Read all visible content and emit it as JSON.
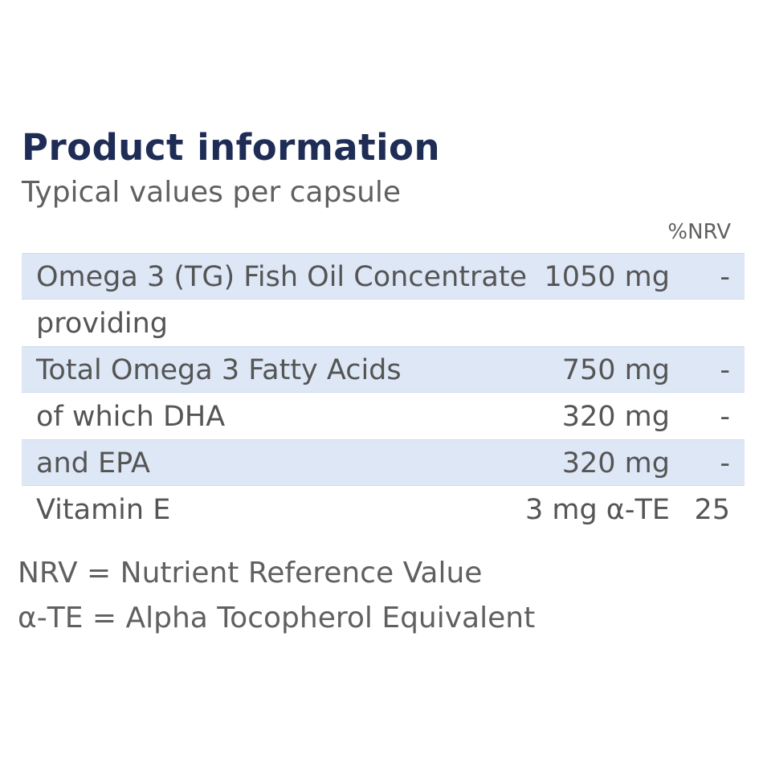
{
  "header": {
    "title": "Product information",
    "subtitle": "Typical values per capsule",
    "nrv_column_label": "%NRV"
  },
  "rows": [
    {
      "name": "Omega 3 (TG) Fish Oil Concentrate",
      "amount": "1050 mg",
      "nrv": "-",
      "shaded": true
    },
    {
      "name": "providing",
      "amount": "",
      "nrv": "",
      "shaded": false
    },
    {
      "name": "Total Omega 3 Fatty Acids",
      "amount": "750 mg",
      "nrv": "-",
      "shaded": true
    },
    {
      "name": "of which DHA",
      "amount": "320 mg",
      "nrv": "-",
      "shaded": false
    },
    {
      "name": "and EPA",
      "amount": "320 mg",
      "nrv": "-",
      "shaded": true
    },
    {
      "name": "Vitamin E",
      "amount": "3 mg α-TE",
      "nrv": "25",
      "shaded": false
    }
  ],
  "footnotes": [
    "NRV = Nutrient Reference Value",
    "α-TE = Alpha Tocopherol Equivalent"
  ],
  "colors": {
    "title": "#1f2d56",
    "text": "#555555",
    "row_shade": "#dde7f6"
  }
}
